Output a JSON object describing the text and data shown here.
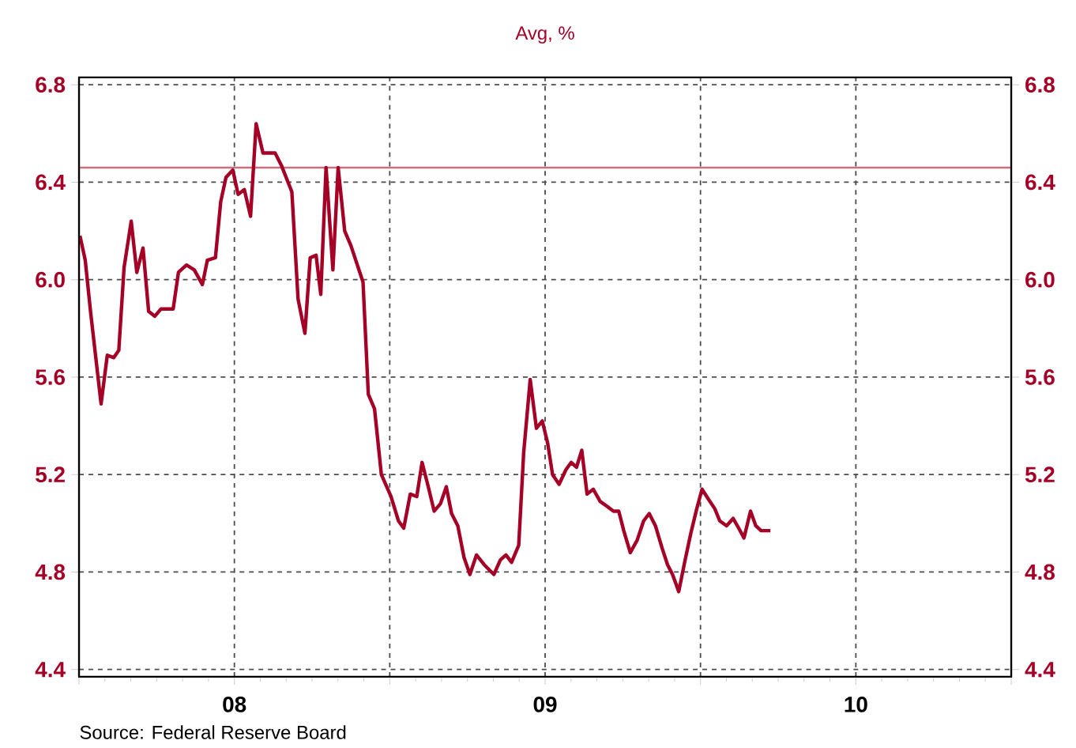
{
  "chart_data": {
    "type": "line",
    "title": "Avg, %",
    "x": [
      2007.503,
      2007.52,
      2007.537,
      2007.571,
      2007.591,
      2007.612,
      2007.628,
      2007.645,
      2007.668,
      2007.686,
      2007.706,
      2007.724,
      2007.744,
      2007.764,
      2007.803,
      2007.82,
      2007.846,
      2007.871,
      2007.897,
      2007.913,
      2007.939,
      2007.956,
      2007.973,
      2007.995,
      2008.012,
      2008.032,
      2008.052,
      2008.07,
      2008.092,
      2008.131,
      2008.151,
      2008.185,
      2008.205,
      2008.227,
      2008.244,
      2008.263,
      2008.278,
      2008.295,
      2008.317,
      2008.334,
      2008.355,
      2008.375,
      2008.414,
      2008.431,
      2008.451,
      2008.473,
      2008.504,
      2008.528,
      2008.545,
      2008.566,
      2008.587,
      2008.604,
      2008.622,
      2008.643,
      2008.663,
      2008.682,
      2008.699,
      2008.719,
      2008.739,
      2008.758,
      2008.779,
      2008.804,
      2008.835,
      2008.856,
      2008.874,
      2008.892,
      2008.915,
      2008.931,
      2008.952,
      2008.972,
      2008.991,
      2009.008,
      2009.024,
      2009.045,
      2009.067,
      2009.084,
      2009.101,
      2009.118,
      2009.135,
      2009.155,
      2009.177,
      2009.199,
      2009.22,
      2009.237,
      2009.253,
      2009.274,
      2009.296,
      2009.317,
      2009.335,
      2009.355,
      2009.376,
      2009.394,
      2009.41,
      2009.43,
      2009.449,
      2009.469,
      2009.488,
      2009.505,
      2009.525,
      2009.546,
      2009.562,
      2009.584,
      2009.605,
      2009.623,
      2009.64,
      2009.661,
      2009.678,
      2009.695,
      2009.725
    ],
    "series": [
      {
        "color": "#a50026",
        "values": [
          6.18,
          6.08,
          5.87,
          5.49,
          5.69,
          5.68,
          5.71,
          6.05,
          6.24,
          6.03,
          6.13,
          5.87,
          5.85,
          5.88,
          5.88,
          6.03,
          6.06,
          6.04,
          5.98,
          6.08,
          6.09,
          6.32,
          6.42,
          6.45,
          6.35,
          6.37,
          6.26,
          6.64,
          6.52,
          6.52,
          6.47,
          6.36,
          5.92,
          5.78,
          6.09,
          6.1,
          5.94,
          6.46,
          6.04,
          6.46,
          6.2,
          6.14,
          5.99,
          5.53,
          5.47,
          5.2,
          5.11,
          5.01,
          4.98,
          5.12,
          5.11,
          5.25,
          5.16,
          5.05,
          5.08,
          5.15,
          5.04,
          4.99,
          4.86,
          4.79,
          4.87,
          4.83,
          4.79,
          4.85,
          4.87,
          4.84,
          4.91,
          5.29,
          5.59,
          5.39,
          5.42,
          5.33,
          5.2,
          5.16,
          5.22,
          5.25,
          5.23,
          5.3,
          5.12,
          5.14,
          5.09,
          5.07,
          5.05,
          5.05,
          4.97,
          4.88,
          4.93,
          5.01,
          5.04,
          4.99,
          4.9,
          4.83,
          4.79,
          4.72,
          4.84,
          4.96,
          5.06,
          5.14,
          5.1,
          5.06,
          5.01,
          4.99,
          5.02,
          4.98,
          4.94,
          5.05,
          4.99,
          4.97,
          4.97
        ]
      }
    ],
    "xlim": [
      2007.5,
      2010.5
    ],
    "xticks": [
      {
        "value": 2007.5,
        "label": null
      },
      {
        "value": 2008,
        "label": "08"
      },
      {
        "value": 2008.5,
        "label": null
      },
      {
        "value": 2009,
        "label": "09"
      },
      {
        "value": 2009.5,
        "label": null
      },
      {
        "value": 2010,
        "label": "10"
      },
      {
        "value": 2010.5,
        "label": null
      }
    ],
    "ylim": [
      4.37,
      6.83
    ],
    "yticks": [
      4.4,
      4.8,
      5.2,
      5.6,
      {
        "value": 6,
        "label": "6.0"
      },
      6.4,
      6.8
    ],
    "y2lim": [
      4.37,
      6.83
    ],
    "y2ticks": [
      4.4,
      4.8,
      5.2,
      5.6,
      {
        "value": 6,
        "label": "6.0"
      },
      6.4,
      6.8
    ],
    "grid": true,
    "line_style": "solid",
    "marker": "none",
    "ref_lines": [
      {
        "axis": "y",
        "value": 6.46,
        "color": "#c9707f"
      }
    ],
    "annotations": [
      "Source:  Federal Reserve Board"
    ]
  }
}
